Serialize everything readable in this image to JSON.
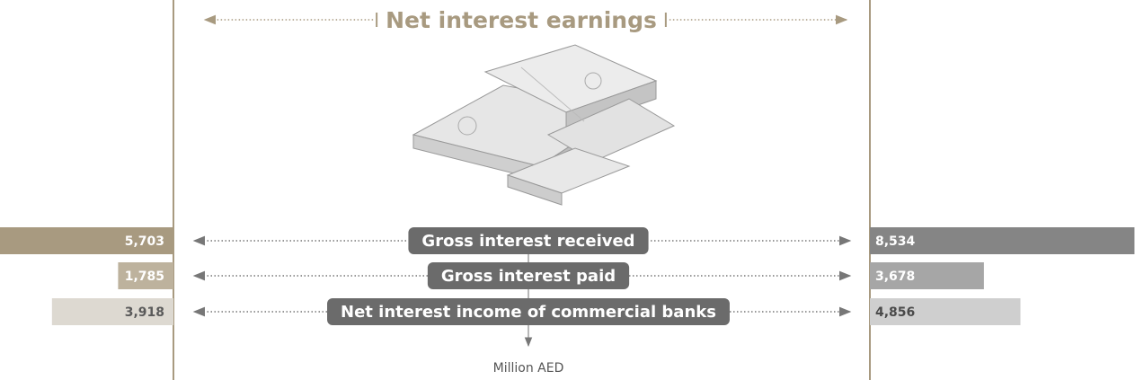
{
  "chart_data": {
    "type": "butterfly",
    "title": "Net interest earnings",
    "categories": [
      "Gross interest received",
      "Gross interest paid",
      "Net interest income of commercial banks"
    ],
    "series": [
      {
        "values": [
          5703,
          1785,
          3918
        ],
        "value_labels": [
          "5,703",
          "1,785",
          "3,918"
        ],
        "colors": [
          "#a89a80",
          "#bdb29d",
          "#ddd9d1"
        ],
        "text_colors": [
          "#ffffff",
          "#ffffff",
          "#5a5a5a"
        ]
      },
      {
        "values": [
          8534,
          3678,
          4856
        ],
        "value_labels": [
          "8,534",
          "3,678",
          "4,856"
        ],
        "colors": [
          "#858585",
          "#a6a6a6",
          "#cfcfcf"
        ],
        "text_colors": [
          "#ffffff",
          "#ffffff",
          "#4a4a4a"
        ]
      }
    ],
    "unit": "Million AED"
  }
}
